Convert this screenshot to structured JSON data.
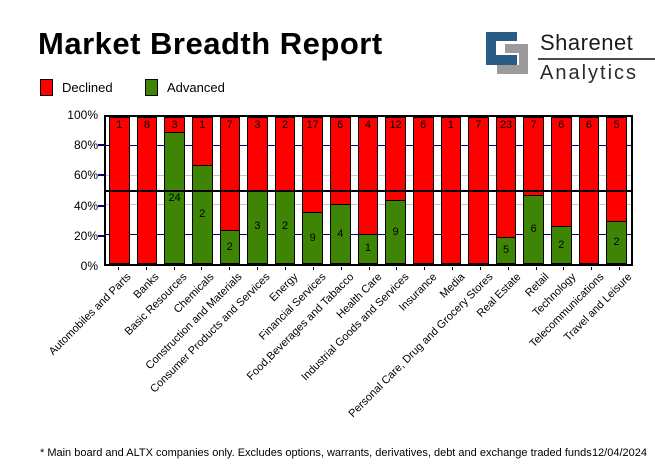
{
  "title": "Market Breadth Report",
  "logo": {
    "line1": "Sharenet",
    "line2": "Analytics",
    "icon": "sharenet-logo-icon",
    "blue": "#2b5c87",
    "gray": "#9b9b9b"
  },
  "legend": [
    {
      "label": "Declined",
      "color": "#ff0000"
    },
    {
      "label": "Advanced",
      "color": "#3f8505"
    }
  ],
  "footer": {
    "note": "* Main board and ALTX companies only. Excludes options, warrants, derivatives, debt and exchange traded funds",
    "date": "12/04/2024"
  },
  "chart_data": {
    "type": "bar",
    "stacked": true,
    "title": "Market Breadth Report",
    "ylabel": "",
    "xlabel": "",
    "ylim": [
      0,
      100
    ],
    "y_ticks": [
      "0%",
      "20%",
      "40%",
      "60%",
      "80%",
      "100%"
    ],
    "grid": "horizontal lines at 20/40/60/80 plus bold line at 50",
    "legend_position": "top-left",
    "value_meaning": "bar heights are percent shares of companies; in-bar labels are company counts",
    "categories": [
      "Automobiles and Parts",
      "Banks",
      "Basic Resources",
      "Chemicals",
      "Construction and Materials",
      "Consumer Products and Services",
      "Energy",
      "Financial Services",
      "Food,Beverages and Tabacco",
      "Health Care",
      "Industrial Goods and Services",
      "Insurance",
      "Media",
      "Personal Care, Drug and Grocery Stores",
      "Real Estate",
      "Retail",
      "Technology",
      "Telecommunications",
      "Travel and Leisure"
    ],
    "series": [
      {
        "name": "Declined",
        "color": "#ff0000",
        "counts": [
          1,
          8,
          3,
          1,
          7,
          3,
          2,
          17,
          6,
          4,
          12,
          6,
          1,
          7,
          23,
          7,
          6,
          6,
          5
        ]
      },
      {
        "name": "Advanced",
        "color": "#3f8505",
        "counts": [
          0,
          0,
          24,
          2,
          2,
          3,
          2,
          9,
          4,
          1,
          9,
          0,
          0,
          0,
          5,
          6,
          2,
          0,
          2
        ]
      }
    ],
    "advanced_pct": [
      0,
      0,
      88.9,
      66.7,
      22.2,
      50,
      50,
      34.6,
      40,
      20,
      42.9,
      0,
      0,
      0,
      17.9,
      46.2,
      25,
      0,
      28.6
    ]
  },
  "colors": {
    "declined": "#ff0000",
    "advanced": "#3f8505",
    "grid_navy": "#000080",
    "grid_silver": "#c6c6c6",
    "half_line": "#000000",
    "plot_border": "#000000"
  }
}
